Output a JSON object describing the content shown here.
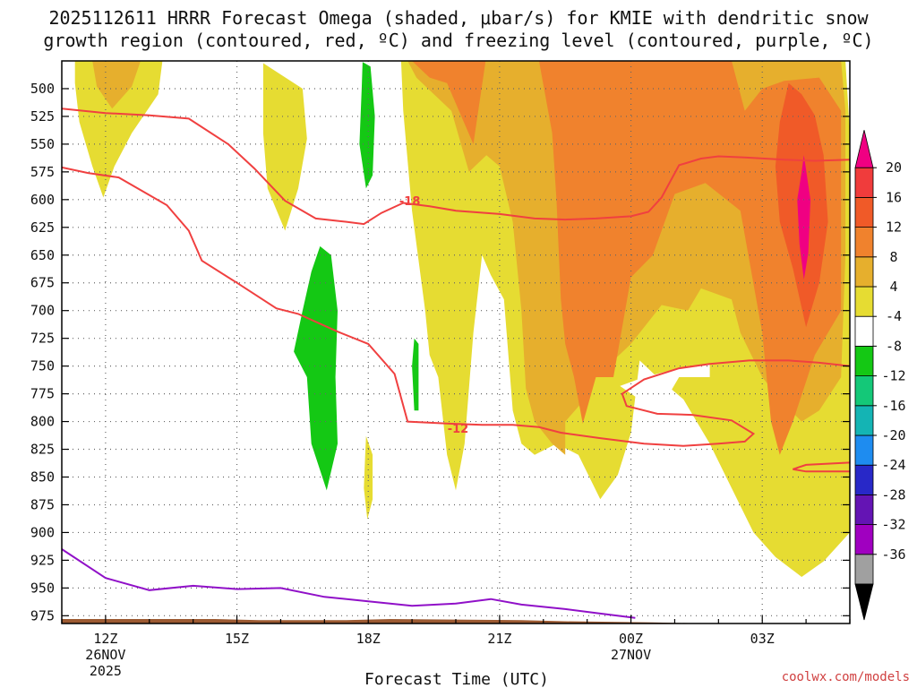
{
  "chart_data": {
    "type": "heatmap",
    "title_line1": "2025112611 HRRR Forecast Omega (shaded, μbar/s) for KMIE with dendritic snow",
    "title_line2": "growth region (contoured, red, ºC) and freezing level (contoured, purple, ºC)",
    "xlabel": "Forecast Time (UTC)",
    "credit": "coolwx.com/models",
    "x_range_hours": [
      11,
      29
    ],
    "y_range_hpa": [
      475,
      982
    ],
    "y_ticks": [
      500,
      525,
      550,
      575,
      600,
      625,
      650,
      675,
      700,
      725,
      750,
      775,
      800,
      825,
      850,
      875,
      900,
      925,
      950,
      975
    ],
    "x_ticks": [
      {
        "hour": 12,
        "label": "12Z",
        "sub1": "26NOV",
        "sub2": "2025"
      },
      {
        "hour": 15,
        "label": "15Z",
        "sub1": "",
        "sub2": ""
      },
      {
        "hour": 18,
        "label": "18Z",
        "sub1": "",
        "sub2": ""
      },
      {
        "hour": 21,
        "label": "21Z",
        "sub1": "",
        "sub2": ""
      },
      {
        "hour": 24,
        "label": "00Z",
        "sub1": "27NOV",
        "sub2": ""
      },
      {
        "hour": 27,
        "label": "03Z",
        "sub1": "",
        "sub2": ""
      }
    ],
    "colorbar": {
      "colors": [
        "#a0a0a0",
        "#a000c0",
        "#6414b4",
        "#2828c8",
        "#1e8cf0",
        "#14b4b4",
        "#14c878",
        "#14c814",
        "#ffffff",
        "#e6dc32",
        "#e6af2d",
        "#f0822d",
        "#f05a28",
        "#f03c3c",
        "#f00082"
      ],
      "labels": [
        "-36",
        "-32",
        "-28",
        "-24",
        "-20",
        "-16",
        "-12",
        "-8",
        "-4",
        "4",
        "8",
        "12",
        "16",
        "20"
      ],
      "under_color": "#000000",
      "over_color": "#f00082"
    },
    "contour_labels": [
      {
        "text": "-18",
        "hour": 18.95,
        "p": 601
      },
      {
        "text": "-12",
        "hour": 20.05,
        "p": 806
      }
    ],
    "dgz_upper_line": [
      [
        11,
        518
      ],
      [
        12,
        522
      ],
      [
        13,
        524
      ],
      [
        13.9,
        527
      ],
      [
        14.8,
        550
      ],
      [
        15.4,
        572
      ],
      [
        16.1,
        601
      ],
      [
        16.8,
        617
      ],
      [
        17.5,
        620
      ],
      [
        17.9,
        622
      ],
      [
        18.3,
        612
      ],
      [
        18.8,
        603
      ],
      [
        19.4,
        606
      ],
      [
        20,
        610
      ],
      [
        21,
        613
      ],
      [
        21.8,
        617
      ],
      [
        22.5,
        618
      ],
      [
        23.2,
        617
      ],
      [
        24,
        615
      ],
      [
        24.4,
        611
      ],
      [
        24.7,
        598
      ],
      [
        25.1,
        569
      ],
      [
        25.6,
        563
      ],
      [
        26,
        561
      ],
      [
        26.6,
        562
      ],
      [
        27.5,
        564
      ],
      [
        28.2,
        565
      ],
      [
        29,
        564
      ]
    ],
    "dgz_lower_line": [
      [
        11,
        571
      ],
      [
        11.6,
        576
      ],
      [
        12.3,
        580
      ],
      [
        13.4,
        605
      ],
      [
        13.9,
        628
      ],
      [
        14.2,
        655
      ],
      [
        15,
        675
      ],
      [
        15.9,
        698
      ],
      [
        16.4,
        703
      ],
      [
        17.3,
        719
      ],
      [
        18,
        730
      ],
      [
        18.6,
        757
      ],
      [
        18.9,
        800
      ],
      [
        19.9,
        802
      ],
      [
        20.6,
        803
      ],
      [
        21.3,
        803
      ],
      [
        21.9,
        805
      ],
      [
        22.4,
        810
      ],
      [
        23.3,
        815
      ],
      [
        24.3,
        820
      ],
      [
        25.2,
        822
      ],
      [
        26,
        820
      ],
      [
        26.6,
        818
      ],
      [
        26.8,
        811
      ],
      [
        26.3,
        799
      ],
      [
        25.4,
        794
      ],
      [
        24.6,
        793
      ],
      [
        23.9,
        786
      ],
      [
        23.8,
        775
      ],
      [
        24.3,
        762
      ],
      [
        25.1,
        752
      ],
      [
        25.8,
        748
      ],
      [
        26.7,
        745
      ],
      [
        27.6,
        745
      ],
      [
        28.3,
        747
      ],
      [
        29,
        750
      ]
    ],
    "dgz_lower_right_loop": [
      [
        29,
        837
      ],
      [
        28,
        839
      ],
      [
        27.7,
        843
      ],
      [
        28,
        845
      ],
      [
        29,
        845
      ]
    ],
    "freezing_level_line": [
      [
        11,
        915
      ],
      [
        12,
        941
      ],
      [
        13,
        952
      ],
      [
        14,
        948
      ],
      [
        15,
        951
      ],
      [
        16,
        950
      ],
      [
        17,
        958
      ],
      [
        18,
        962
      ],
      [
        19,
        966
      ],
      [
        20,
        964
      ],
      [
        20.8,
        960
      ],
      [
        21.5,
        965
      ],
      [
        22.5,
        969
      ],
      [
        23.3,
        973
      ],
      [
        24.1,
        977
      ]
    ],
    "ground_line": [
      [
        11,
        978
      ],
      [
        14.5,
        978
      ],
      [
        15.5,
        979
      ],
      [
        17.5,
        979
      ],
      [
        18.5,
        978
      ],
      [
        21.5,
        979
      ],
      [
        22.5,
        980
      ],
      [
        24.5,
        981
      ],
      [
        25.8,
        982
      ],
      [
        29,
        982
      ]
    ],
    "shaded_regions": [
      {
        "cls": 9,
        "pts": [
          [
            11.3,
            475
          ],
          [
            13.3,
            475
          ],
          [
            13.2,
            505
          ],
          [
            12.6,
            540
          ],
          [
            12.2,
            570
          ],
          [
            11.95,
            598
          ],
          [
            11.7,
            570
          ],
          [
            11.4,
            530
          ],
          [
            11.3,
            495
          ]
        ]
      },
      {
        "cls": 10,
        "pts": [
          [
            11.7,
            475
          ],
          [
            12.8,
            475
          ],
          [
            12.6,
            498
          ],
          [
            12.15,
            518
          ],
          [
            11.8,
            498
          ]
        ]
      },
      {
        "cls": 9,
        "pts": [
          [
            15.6,
            477
          ],
          [
            16.5,
            500
          ],
          [
            16.6,
            545
          ],
          [
            16.4,
            590
          ],
          [
            16.1,
            628
          ],
          [
            15.7,
            590
          ],
          [
            15.6,
            540
          ],
          [
            15.6,
            500
          ]
        ]
      },
      {
        "cls": 7,
        "pts": [
          [
            17.87,
            476
          ],
          [
            18.05,
            480
          ],
          [
            18.15,
            525
          ],
          [
            18.1,
            578
          ],
          [
            17.95,
            590
          ],
          [
            17.8,
            550
          ],
          [
            17.85,
            500
          ]
        ]
      },
      {
        "cls": 7,
        "pts": [
          [
            16.9,
            642
          ],
          [
            17.15,
            650
          ],
          [
            17.3,
            700
          ],
          [
            17.25,
            760
          ],
          [
            17.3,
            820
          ],
          [
            17.05,
            862
          ],
          [
            16.7,
            820
          ],
          [
            16.6,
            760
          ],
          [
            16.3,
            737
          ],
          [
            16.5,
            700
          ],
          [
            16.7,
            665
          ]
        ]
      },
      {
        "cls": 7,
        "pts": [
          [
            19.05,
            725
          ],
          [
            19.15,
            730
          ],
          [
            19.15,
            790
          ],
          [
            19.05,
            790
          ],
          [
            19,
            750
          ]
        ]
      },
      {
        "cls": 9,
        "pts": [
          [
            17.95,
            813
          ],
          [
            18.1,
            830
          ],
          [
            18.1,
            870
          ],
          [
            17.98,
            888
          ],
          [
            17.9,
            860
          ],
          [
            17.93,
            830
          ]
        ]
      },
      {
        "cls": 9,
        "pts": [
          [
            18.75,
            475
          ],
          [
            28.9,
            475
          ],
          [
            29,
            540
          ],
          [
            29,
            900
          ],
          [
            28.4,
            926
          ],
          [
            27.9,
            940
          ],
          [
            27.3,
            922
          ],
          [
            26.8,
            900
          ],
          [
            26.3,
            860
          ],
          [
            25.8,
            820
          ],
          [
            25.2,
            780
          ],
          [
            24.6,
            760
          ],
          [
            24.2,
            745
          ],
          [
            24,
            810
          ],
          [
            23.7,
            848
          ],
          [
            23.3,
            870
          ],
          [
            22.8,
            830
          ],
          [
            22.3,
            820
          ],
          [
            21.8,
            830
          ],
          [
            21.5,
            820
          ],
          [
            21.3,
            790
          ],
          [
            21.1,
            690
          ],
          [
            20.8,
            668
          ],
          [
            20.6,
            650
          ],
          [
            20.4,
            720
          ],
          [
            20.2,
            820
          ],
          [
            20,
            862
          ],
          [
            19.8,
            830
          ],
          [
            19.6,
            760
          ],
          [
            19.4,
            740
          ],
          [
            19.3,
            700
          ],
          [
            19,
            610
          ],
          [
            18.8,
            520
          ]
        ]
      },
      {
        "cls": 10,
        "pts": [
          [
            18.9,
            475
          ],
          [
            28.8,
            475
          ],
          [
            28.9,
            520
          ],
          [
            28.9,
            650
          ],
          [
            28.8,
            760
          ],
          [
            28.3,
            790
          ],
          [
            27.9,
            800
          ],
          [
            27.4,
            780
          ],
          [
            27,
            760
          ],
          [
            26.5,
            720
          ],
          [
            26.3,
            690
          ],
          [
            25.6,
            680
          ],
          [
            25.3,
            700
          ],
          [
            24.7,
            695
          ],
          [
            24,
            730
          ],
          [
            23.2,
            760
          ],
          [
            22.9,
            782
          ],
          [
            22.5,
            800
          ],
          [
            22.5,
            830
          ],
          [
            22.2,
            820
          ],
          [
            21.8,
            800
          ],
          [
            21.6,
            770
          ],
          [
            21.5,
            700
          ],
          [
            21.3,
            620
          ],
          [
            21,
            570
          ],
          [
            20.7,
            560
          ],
          [
            20.3,
            575
          ],
          [
            19.9,
            520
          ],
          [
            19.5,
            505
          ],
          [
            19.1,
            490
          ]
        ]
      },
      {
        "cls": 11,
        "pts": [
          [
            19,
            475
          ],
          [
            19.4,
            490
          ],
          [
            19.8,
            495
          ],
          [
            20.4,
            550
          ],
          [
            20.7,
            470
          ]
        ]
      },
      {
        "cls": 11,
        "pts": [
          [
            21.9,
            475
          ],
          [
            26.3,
            475
          ],
          [
            26.6,
            520
          ],
          [
            27,
            500
          ],
          [
            27.5,
            493
          ],
          [
            28.3,
            490
          ],
          [
            28.8,
            520
          ],
          [
            28.8,
            700
          ],
          [
            28.2,
            740
          ],
          [
            27.7,
            800
          ],
          [
            27.4,
            830
          ],
          [
            27.2,
            800
          ],
          [
            27,
            720
          ],
          [
            26.5,
            610
          ],
          [
            25.7,
            585
          ],
          [
            25,
            595
          ],
          [
            24.5,
            650
          ],
          [
            24,
            670
          ],
          [
            23.6,
            760
          ],
          [
            23.2,
            760
          ],
          [
            22.9,
            802
          ],
          [
            22.7,
            760
          ],
          [
            22.5,
            730
          ],
          [
            22.4,
            690
          ],
          [
            22.3,
            600
          ],
          [
            22.2,
            540
          ]
        ]
      },
      {
        "cls": 12,
        "pts": [
          [
            27.6,
            495
          ],
          [
            27.9,
            505
          ],
          [
            28.2,
            524
          ],
          [
            28.4,
            560
          ],
          [
            28.5,
            620
          ],
          [
            28.3,
            675
          ],
          [
            28,
            715
          ],
          [
            27.7,
            662
          ],
          [
            27.4,
            620
          ],
          [
            27.3,
            570
          ],
          [
            27.4,
            530
          ]
        ]
      },
      {
        "cls": 14,
        "pts": [
          [
            27.95,
            560
          ],
          [
            28.1,
            600
          ],
          [
            28.05,
            648
          ],
          [
            27.95,
            672
          ],
          [
            27.85,
            640
          ],
          [
            27.8,
            600
          ],
          [
            27.9,
            575
          ]
        ]
      },
      {
        "cls": 8,
        "pts": [
          [
            23.75,
            768
          ],
          [
            24.3,
            760
          ],
          [
            25.1,
            752
          ],
          [
            25.8,
            748
          ],
          [
            25.8,
            760
          ],
          [
            25.1,
            760
          ],
          [
            24.8,
            780
          ],
          [
            24.3,
            783
          ]
        ]
      }
    ]
  }
}
